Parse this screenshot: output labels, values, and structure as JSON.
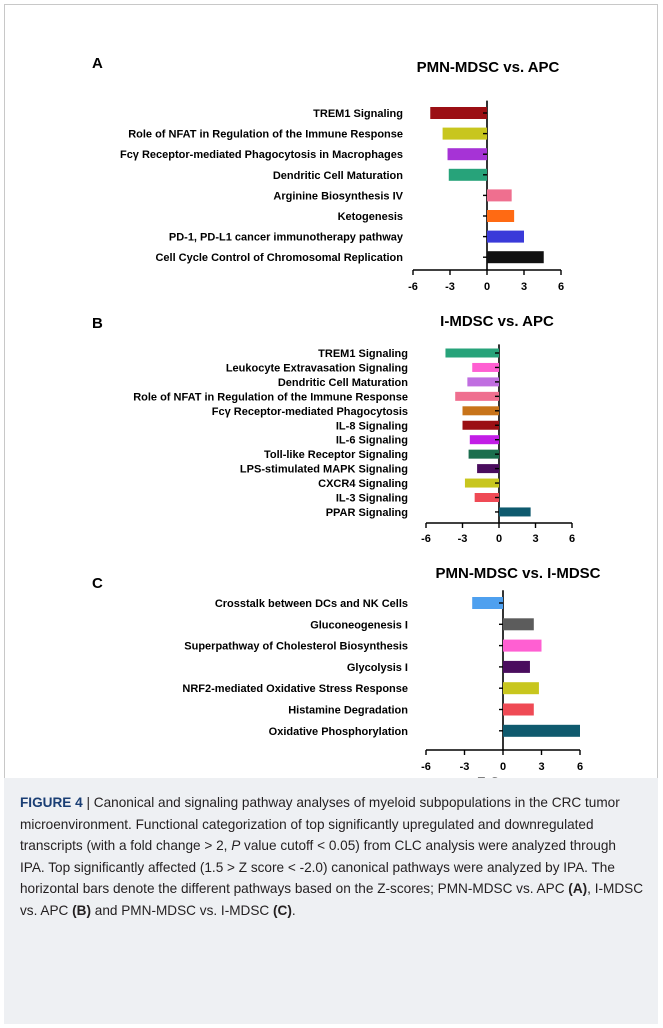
{
  "chart_data": [
    {
      "type": "bar",
      "orientation": "horizontal",
      "panel_label": "A",
      "title": "PMN-MDSC vs. APC",
      "categories": [
        "TREM1 Signaling",
        "Role of NFAT in Regulation of the Immune Response",
        "Fcγ Receptor-mediated Phagocytosis in Macrophages",
        "Dendritic Cell Maturation",
        "Arginine Biosynthesis IV",
        "Ketogenesis",
        "PD-1, PD-L1 cancer immunotherapy pathway",
        "Cell Cycle Control of Chromosomal Replication"
      ],
      "values": [
        -4.6,
        -3.6,
        -3.2,
        -3.1,
        2.0,
        2.2,
        3.0,
        4.6
      ],
      "colors": [
        "#9b0f14",
        "#c8c61e",
        "#a633d6",
        "#27a37a",
        "#ef6f8f",
        "#ff6a13",
        "#3a3ad9",
        "#111111"
      ],
      "xlim": [
        -6,
        6
      ],
      "xticks": [
        "-6",
        "-3",
        "0",
        "3",
        "6"
      ],
      "xlabel": ""
    },
    {
      "type": "bar",
      "orientation": "horizontal",
      "panel_label": "B",
      "title": "I-MDSC vs. APC",
      "categories": [
        "TREM1 Signaling",
        "Leukocyte Extravasation Signaling",
        "Dendritic Cell Maturation",
        "Role of NFAT in Regulation of the Immune Response",
        "Fcγ Receptor-mediated Phagocytosis",
        "IL-8 Signaling",
        "IL-6 Signaling",
        "Toll-like Receptor Signaling",
        "LPS-stimulated MAPK Signaling",
        "CXCR4 Signaling",
        "IL-3 Signaling",
        "PPAR Signaling"
      ],
      "values": [
        -4.4,
        -2.2,
        -2.6,
        -3.6,
        -3.0,
        -3.0,
        -2.4,
        -2.5,
        -1.8,
        -2.8,
        -2.0,
        2.6
      ],
      "colors": [
        "#27a37a",
        "#ff5fd2",
        "#c06ee0",
        "#ef6f8f",
        "#c8741a",
        "#9b0f14",
        "#c21ee6",
        "#1b6e4e",
        "#4a0d5e",
        "#c8c61e",
        "#ef4a55",
        "#0f5a6e"
      ],
      "xlim": [
        -6,
        6
      ],
      "xticks": [
        "-6",
        "-3",
        "0",
        "3",
        "6"
      ],
      "xlabel": ""
    },
    {
      "type": "bar",
      "orientation": "horizontal",
      "panel_label": "C",
      "title": "PMN-MDSC vs. I-MDSC",
      "categories": [
        "Crosstalk between DCs and NK Cells",
        "Gluconeogenesis I",
        "Superpathway of Cholesterol Biosynthesis",
        "Glycolysis I",
        "NRF2-mediated Oxidative Stress Response",
        "Histamine Degradation",
        "Oxidative Phosphorylation"
      ],
      "values": [
        -2.4,
        2.4,
        3.0,
        2.1,
        2.8,
        2.4,
        6.0
      ],
      "colors": [
        "#4ea0ef",
        "#5c5c5c",
        "#ff5fd2",
        "#4a0d5e",
        "#c8c61e",
        "#ef4a55",
        "#0f5a6e"
      ],
      "xlim": [
        -6,
        6
      ],
      "xticks": [
        "-6",
        "-3",
        "0",
        "3",
        "6"
      ],
      "xlabel": "Z-Score"
    }
  ],
  "caption": {
    "figure_label": "FIGURE 4",
    "separator": " | ",
    "text_1": "Canonical and signaling pathway analyses of myeloid subpopulations in the CRC tumor microenvironment. Functional categorization of top significantly upregulated and downregulated transcripts (with a fold change > 2, ",
    "p_italic": "P",
    "text_2": " value cutoff < 0.05) from CLC analysis were analyzed through IPA. Top significantly affected (1.5 > Z score < -2.0) canonical pathways were analyzed by IPA. The horizontal bars denote the different pathways based on the Z-scores; PMN-MDSC vs. APC ",
    "ref_a": "(A)",
    "text_3": ", I-MDSC vs. APC ",
    "ref_b": "(B)",
    "text_4": " and PMN-MDSC vs. I-MDSC ",
    "ref_c": "(C)",
    "text_5": "."
  }
}
